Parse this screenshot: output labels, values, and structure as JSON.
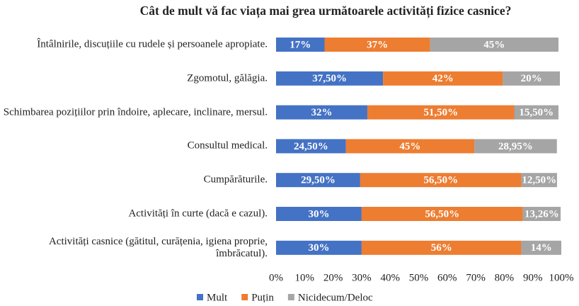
{
  "chart_data": {
    "type": "bar",
    "orientation": "horizontal",
    "stacked": true,
    "title": "Cât de mult vă fac viața mai grea următoarele activități fizice casnice?",
    "categories": [
      "Întâlnirile, discuțiile cu rudele și persoanele apropiate.",
      "Zgomotul, gălăgia.",
      "Schimbarea pozițiilor prin îndoire, aplecare, inclinare, mersul.",
      "Consultul medical.",
      "Cumpărăturile.",
      "Activități în curte (dacă e cazul).",
      "Activități casnice (gătitul, curățenia, igiena proprie, îmbrăcatul)."
    ],
    "series": [
      {
        "name": "Mult",
        "color": "#4472c4",
        "values": [
          17,
          37.5,
          32,
          24.5,
          29.5,
          30,
          30
        ],
        "value_labels": [
          "17%",
          "37,50%",
          "32%",
          "24,50%",
          "29,50%",
          "30%",
          "30%"
        ]
      },
      {
        "name": "Puțin",
        "color": "#ed7d31",
        "values": [
          37,
          42,
          51.5,
          45,
          56.5,
          56.5,
          56
        ],
        "value_labels": [
          "37%",
          "42%",
          "51,50%",
          "45%",
          "56,50%",
          "56,50%",
          "56%"
        ]
      },
      {
        "name": "Nicidecum/Deloc",
        "color": "#a5a5a5",
        "values": [
          45,
          20,
          15.5,
          28.95,
          12.5,
          13.26,
          14
        ],
        "value_labels": [
          "45%",
          "20%",
          "15,50%",
          "28,95%",
          "12,50%",
          "13,26%",
          "14%"
        ]
      }
    ],
    "xlim": [
      0,
      100
    ],
    "xticks": [
      {
        "value": 0,
        "label": "0%"
      },
      {
        "value": 10,
        "label": "10%"
      },
      {
        "value": 20,
        "label": "20%"
      },
      {
        "value": 30,
        "label": "30%"
      },
      {
        "value": 40,
        "label": "40%"
      },
      {
        "value": 50,
        "label": "50%"
      },
      {
        "value": 60,
        "label": "60%"
      },
      {
        "value": 70,
        "label": "70%"
      },
      {
        "value": 80,
        "label": "80%"
      },
      {
        "value": 90,
        "label": "90%"
      },
      {
        "value": 100,
        "label": "100%"
      }
    ],
    "legend": "bottom"
  }
}
